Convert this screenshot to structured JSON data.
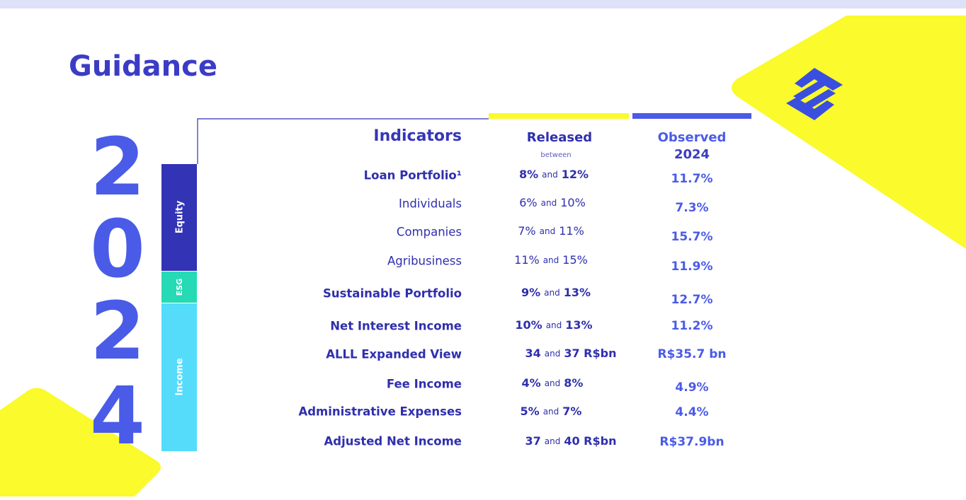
{
  "title": "Guidance",
  "year_digits": [
    "2",
    "0",
    "2",
    "4"
  ],
  "sections": [
    "Equity",
    "ESG",
    "Income"
  ],
  "table": {
    "headers": {
      "indicators": "Indicators",
      "released": "Released",
      "released_note": "between",
      "observed": "Observed",
      "observed_year": "2024"
    },
    "rows": [
      {
        "indicator": "Loan Portfolio¹",
        "low": "8%",
        "and": "and",
        "high": "12%",
        "observed": "11.7%"
      },
      {
        "indicator": "Individuals",
        "low": "6%",
        "and": "and",
        "high": "10%",
        "observed": "7.3%"
      },
      {
        "indicator": "Companies",
        "low": "7%",
        "and": "and",
        "high": "11%",
        "observed": "15.7%"
      },
      {
        "indicator": "Agribusiness",
        "low": "11%",
        "and": "and",
        "high": "15%",
        "observed": "11.9%"
      },
      {
        "indicator": "Sustainable Portfolio",
        "low": "9%",
        "and": "and",
        "high": "13%",
        "observed": "12.7%"
      },
      {
        "indicator": "Net Interest Income",
        "low": "10%",
        "and": "and",
        "high": "13%",
        "observed": "11.2%"
      },
      {
        "indicator": "ALLL Expanded View",
        "low": "34",
        "and": "and",
        "high": "37 R$bn",
        "observed": "R$35.7 bn"
      },
      {
        "indicator": "Fee Income",
        "low": "4%",
        "and": "and",
        "high": "8%",
        "observed": "4.9%"
      },
      {
        "indicator": "Administrative Expenses",
        "low": "5%",
        "and": "and",
        "high": "7%",
        "observed": "4.4%"
      },
      {
        "indicator": "Adjusted Net Income",
        "low": "37",
        "and": "and",
        "high": "40 R$bn",
        "observed": "R$37.9bn"
      }
    ]
  }
}
